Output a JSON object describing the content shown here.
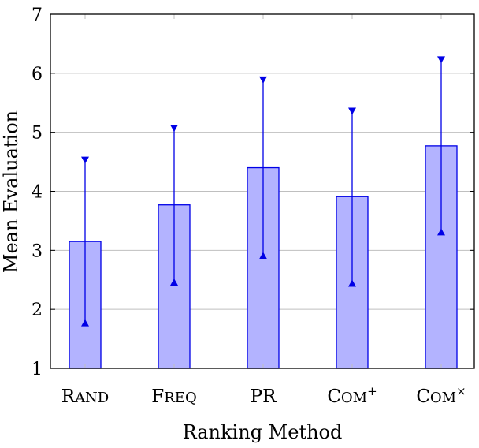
{
  "chart_data": {
    "type": "bar",
    "categories": [
      {
        "key": "rand",
        "main": "R",
        "small": "AND",
        "sup": ""
      },
      {
        "key": "freq",
        "main": "F",
        "small": "REQ",
        "sup": ""
      },
      {
        "key": "pr",
        "main": "PR",
        "small": "",
        "sup": ""
      },
      {
        "key": "com_plus",
        "main": "C",
        "small": "OM",
        "sup": "+"
      },
      {
        "key": "com_times",
        "main": "C",
        "small": "OM",
        "sup": "×"
      }
    ],
    "values": [
      3.15,
      3.77,
      4.4,
      3.91,
      4.77
    ],
    "error_upper": [
      4.52,
      5.06,
      5.88,
      5.35,
      6.22
    ],
    "error_lower": [
      1.78,
      2.47,
      2.92,
      2.45,
      3.32
    ],
    "xlabel": "Ranking Method",
    "ylabel": "Mean Evaluation",
    "ylim": [
      1,
      7
    ],
    "yticks": [
      "1",
      "2",
      "3",
      "4",
      "5",
      "6",
      "7"
    ],
    "grid": "horizontal",
    "colors": {
      "bar_fill": "#b3b3ff",
      "bar_stroke": "#0000e6",
      "error": "#0000e6",
      "grid": "#bfbfbf",
      "axis": "#000000"
    }
  }
}
